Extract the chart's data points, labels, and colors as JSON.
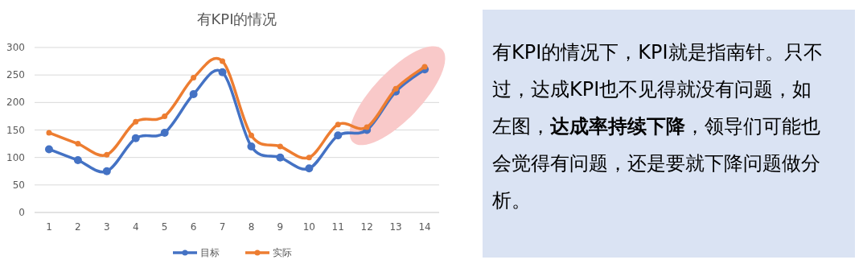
{
  "chart_data": [
    {
      "type": "line",
      "title": "有KPI的情况",
      "categories": [
        "1",
        "2",
        "3",
        "4",
        "5",
        "6",
        "7",
        "8",
        "9",
        "10",
        "11",
        "12",
        "13",
        "14"
      ],
      "series": [
        {
          "name": "目标",
          "color": "#4472c4",
          "values": [
            115,
            95,
            75,
            135,
            145,
            215,
            255,
            120,
            100,
            80,
            140,
            150,
            220,
            260
          ]
        },
        {
          "name": "实际",
          "color": "#ed7d31",
          "values": [
            145,
            125,
            105,
            165,
            175,
            245,
            275,
            140,
            120,
            100,
            160,
            155,
            225,
            265
          ]
        }
      ],
      "ylim": [
        0,
        300
      ],
      "yticks": [
        0,
        50,
        100,
        150,
        200,
        250,
        300
      ],
      "grid": "y",
      "legend": "bottom",
      "marker": "circle",
      "line_style": "solid"
    },
    {
      "type": "other",
      "annotations": [
        "有KPI的情况下，KPI就是指南针。只不过，达成KPI也不见得就没有问题，如左图，**达成率持续下降**，领导们可能也会觉得有问题，还是要就下降问题做分析。"
      ]
    }
  ]
}
